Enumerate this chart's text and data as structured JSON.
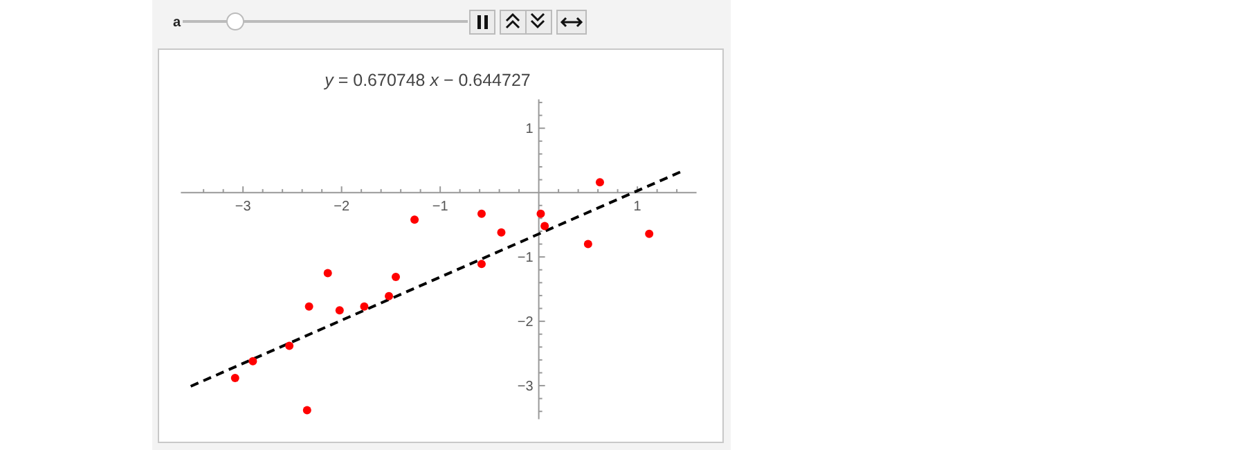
{
  "chart_data": {
    "type": "scatter",
    "title": "y = 0.670748 x − 0.644727",
    "annotations": [
      "a"
    ],
    "xlim": [
      -3.63,
      1.6
    ],
    "ylim": [
      -3.52,
      1.45
    ],
    "xticks": [
      {
        "value": -3,
        "label": "−3"
      },
      {
        "value": -2,
        "label": "−2"
      },
      {
        "value": -1,
        "label": "−1"
      },
      {
        "value": 1,
        "label": "1"
      },
      {
        "value": -3.4,
        "label": null
      },
      {
        "value": -3.2,
        "label": null
      },
      {
        "value": -2.8,
        "label": null
      },
      {
        "value": -2.6,
        "label": null
      },
      {
        "value": -2.4,
        "label": null
      },
      {
        "value": -2.2,
        "label": null
      },
      {
        "value": -1.8,
        "label": null
      },
      {
        "value": -1.6,
        "label": null
      },
      {
        "value": -1.4,
        "label": null
      },
      {
        "value": -1.2,
        "label": null
      },
      {
        "value": -0.8,
        "label": null
      },
      {
        "value": -0.6,
        "label": null
      },
      {
        "value": -0.4,
        "label": null
      },
      {
        "value": -0.2,
        "label": null
      },
      {
        "value": 0.2,
        "label": null
      },
      {
        "value": 0.4,
        "label": null
      },
      {
        "value": 0.6,
        "label": null
      },
      {
        "value": 0.8,
        "label": null
      },
      {
        "value": 1.2,
        "label": null
      },
      {
        "value": 1.4,
        "label": null
      }
    ],
    "yticks": [
      {
        "value": 1,
        "label": "1"
      },
      {
        "value": -1,
        "label": "−1"
      },
      {
        "value": -2,
        "label": "−2"
      },
      {
        "value": -3,
        "label": "−3"
      },
      {
        "value": 1.4,
        "label": null
      },
      {
        "value": 1.2,
        "label": null
      },
      {
        "value": 0.8,
        "label": null
      },
      {
        "value": 0.6,
        "label": null
      },
      {
        "value": 0.4,
        "label": null
      },
      {
        "value": 0.2,
        "label": null
      },
      {
        "value": -0.2,
        "label": null
      },
      {
        "value": -0.4,
        "label": null
      },
      {
        "value": -0.6,
        "label": null
      },
      {
        "value": -0.8,
        "label": null
      },
      {
        "value": -1.2,
        "label": null
      },
      {
        "value": -1.4,
        "label": null
      },
      {
        "value": -1.6,
        "label": null
      },
      {
        "value": -1.8,
        "label": null
      },
      {
        "value": -2.2,
        "label": null
      },
      {
        "value": -2.4,
        "label": null
      },
      {
        "value": -2.6,
        "label": null
      },
      {
        "value": -2.8,
        "label": null
      },
      {
        "value": -3.2,
        "label": null
      },
      {
        "value": -3.4,
        "label": null
      }
    ],
    "grid": false,
    "series": [
      {
        "type": "line",
        "color": "#000000",
        "line_style": "dashed",
        "marker": "none",
        "x": [
          -3.53,
          1.48
        ],
        "values": [
          -3.01,
          0.35
        ]
      },
      {
        "color": "#ff0000",
        "marker": "circle",
        "x": [
          -3.08,
          -2.9,
          -2.53,
          -2.35,
          -2.33,
          -2.14,
          -2.02,
          -1.77,
          -1.52,
          -1.45,
          -1.26,
          -0.58,
          -0.58,
          -0.38,
          0.02,
          0.06,
          0.5,
          0.62,
          1.12
        ],
        "values": [
          -2.88,
          -2.62,
          -2.38,
          -3.38,
          -1.77,
          -1.25,
          -1.83,
          -1.77,
          -1.61,
          -1.31,
          -0.42,
          -0.33,
          -1.11,
          -0.62,
          -0.33,
          -0.52,
          -0.8,
          0.16,
          -0.64
        ]
      }
    ]
  }
}
